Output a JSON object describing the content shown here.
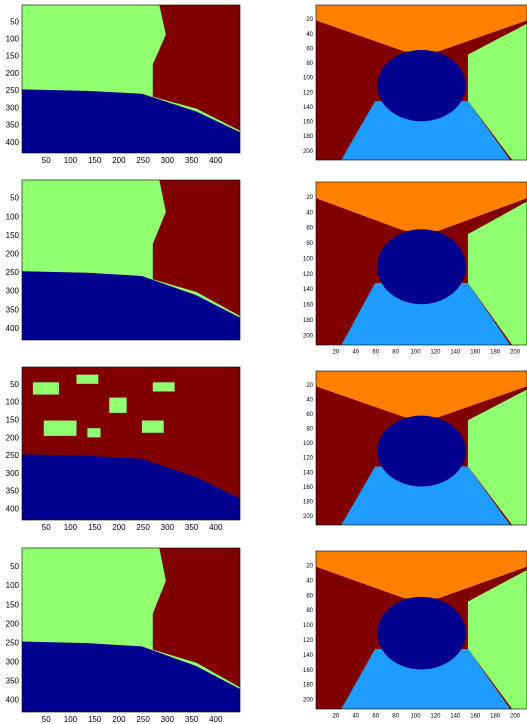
{
  "left_panels": [
    {
      "yticks": [
        50,
        100,
        150,
        200,
        250,
        300,
        350,
        400
      ],
      "xticks": [
        50,
        100,
        150,
        200,
        250,
        300,
        350,
        400
      ],
      "style": "a"
    },
    {
      "yticks": [
        50,
        100,
        150,
        200,
        250,
        300,
        350,
        400
      ],
      "xticks": [],
      "style": "b"
    },
    {
      "yticks": [
        50,
        100,
        150,
        200,
        250,
        300,
        350,
        400
      ],
      "xticks": [
        50,
        100,
        150,
        200,
        250,
        300,
        350,
        400
      ],
      "style": "c"
    },
    {
      "yticks": [
        50,
        100,
        150,
        200,
        250,
        300,
        350,
        400
      ],
      "xticks": [
        50,
        100,
        150,
        200,
        250,
        300,
        350,
        400
      ],
      "style": "b"
    }
  ],
  "right_panels": [
    {
      "yticks": [
        20,
        40,
        60,
        80,
        100,
        120,
        140,
        160,
        180,
        200
      ],
      "xticks": []
    },
    {
      "yticks": [
        20,
        40,
        60,
        80,
        100,
        120,
        140,
        160,
        180,
        200
      ],
      "xticks": [
        20,
        40,
        60,
        80,
        100,
        120,
        140,
        160,
        180,
        200
      ]
    },
    {
      "yticks": [
        20,
        40,
        60,
        80,
        100,
        120,
        140,
        160,
        180,
        200
      ],
      "xticks": []
    },
    {
      "yticks": [
        20,
        40,
        60,
        80,
        100,
        120,
        140,
        160,
        180,
        200
      ],
      "xticks": [
        20,
        40,
        60,
        80,
        100,
        120,
        140,
        160,
        180,
        200
      ]
    }
  ]
}
